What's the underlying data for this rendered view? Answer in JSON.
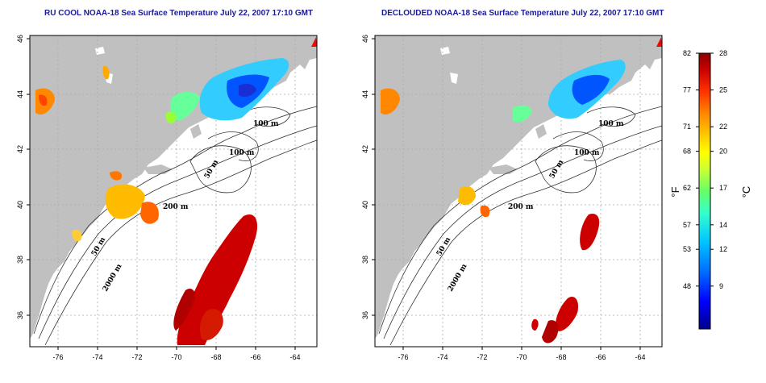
{
  "panels": [
    {
      "title": "RU COOL NOAA-18 Sea Surface Temperature July 22, 2007 17:10 GMT",
      "mode": "cool"
    },
    {
      "title": "DECLOUDED NOAA-18 Sea Surface Temperature July 22, 2007 17:10 GMT",
      "mode": "declouded"
    }
  ],
  "axes": {
    "lon_ticks": [
      "-76",
      "-74",
      "-72",
      "-70",
      "-68",
      "-66",
      "-64"
    ],
    "lat_ticks": [
      "46",
      "44",
      "42",
      "40",
      "38",
      "36"
    ],
    "lon_range": [
      -77.2,
      -63.0
    ],
    "lat_range": [
      35.0,
      46.0
    ]
  },
  "contour_labels": [
    "100 m",
    "100 m",
    "50 m",
    "200 m",
    "50 m",
    "2000 m"
  ],
  "colorbar": {
    "fahrenheit_ticks": [
      "82",
      "77",
      "71",
      "68",
      "62",
      "57",
      "53",
      "48"
    ],
    "celsius_ticks": [
      "28",
      "25",
      "22",
      "20",
      "17",
      "14",
      "12",
      "9"
    ],
    "f_unit": "°F",
    "c_unit": "°C",
    "c_range": [
      5.5,
      28
    ],
    "colors": [
      "#00008b",
      "#0000ff",
      "#0066ff",
      "#00c8ff",
      "#33ffcc",
      "#66ff66",
      "#ccff33",
      "#ffff00",
      "#ffcc00",
      "#ff8800",
      "#ff3300",
      "#cc0000",
      "#8b0000"
    ]
  },
  "colors": {
    "land": "#c0c0c0",
    "water": "#ffffff",
    "grid": "#aaaaaa",
    "contour": "#333333",
    "title": "#1a1a9a"
  }
}
